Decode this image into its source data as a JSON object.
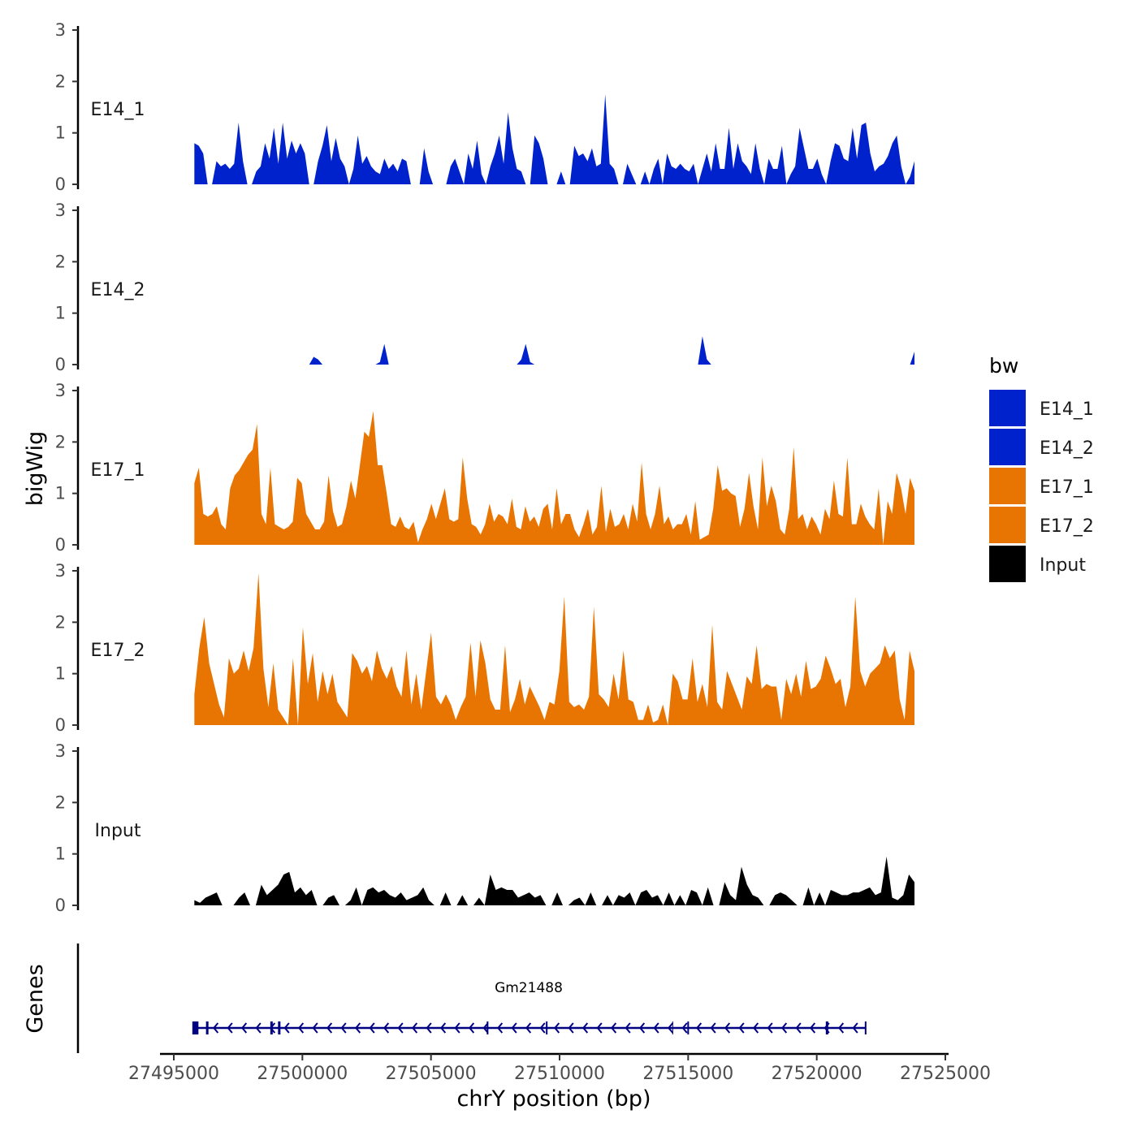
{
  "chart_data": {
    "type": "area",
    "ylabel": "bigWig",
    "xlabel": "chrY position (bp)",
    "y_ticks": [
      "0",
      "1",
      "2",
      "3"
    ],
    "ylim": [
      0,
      3
    ],
    "xlim": [
      27494000,
      27525500
    ],
    "x_ticks": [
      27495000,
      27500000,
      27505000,
      27510000,
      27515000,
      27520000,
      27525000
    ],
    "x_tick_labels": [
      "27495000",
      "27500000",
      "27505000",
      "27510000",
      "27515000",
      "27520000",
      "27525000"
    ],
    "legend": {
      "title": "bw",
      "position": "right",
      "entries": [
        {
          "label": "E14_1",
          "color": "#0022CC"
        },
        {
          "label": "E14_2",
          "color": "#0022CC"
        },
        {
          "label": "E17_1",
          "color": "#E87502"
        },
        {
          "label": "E17_2",
          "color": "#E87502"
        },
        {
          "label": "Input",
          "color": "#000000"
        }
      ]
    },
    "series": [
      {
        "name": "E14_1",
        "color": "#0022CC",
        "x_start": 27495800,
        "x_end": 27523800,
        "values": [
          0.8,
          0.75,
          0.6,
          0,
          0,
          0.45,
          0.35,
          0.4,
          0.3,
          0.4,
          1.2,
          0.45,
          0,
          0,
          0.25,
          0.35,
          0.8,
          0.5,
          1.1,
          0.4,
          1.2,
          0.5,
          0.85,
          0.6,
          0.8,
          0.6,
          0,
          0,
          0.45,
          0.75,
          1.15,
          0.45,
          0.9,
          0.5,
          0.35,
          0,
          0.3,
          0.95,
          0.4,
          0.55,
          0.35,
          0.25,
          0.2,
          0.5,
          0.3,
          0.4,
          0.25,
          0.5,
          0.45,
          0,
          0,
          0,
          0.7,
          0.25,
          0,
          0,
          0,
          0,
          0.35,
          0.5,
          0.25,
          0,
          0.6,
          0.3,
          0.85,
          0.2,
          0,
          0.35,
          0.6,
          0.95,
          0.4,
          1.4,
          0.7,
          0.3,
          0.25,
          0,
          0,
          0.95,
          0.8,
          0.5,
          0,
          0,
          0,
          0.25,
          0,
          0,
          0.75,
          0.55,
          0.6,
          0.45,
          0.7,
          0.35,
          0.4,
          1.75,
          0.4,
          0.3,
          0,
          0,
          0.4,
          0.2,
          0,
          0,
          0.25,
          0,
          0.3,
          0.5,
          0,
          0.6,
          0.35,
          0.3,
          0.4,
          0.3,
          0.25,
          0.4,
          0,
          0.3,
          0.6,
          0.25,
          0.8,
          0.3,
          0.3,
          1.1,
          0.3,
          0.8,
          0.45,
          0.35,
          0.2,
          0.8,
          0.3,
          0,
          0.5,
          0.3,
          0.3,
          0.75,
          0,
          0.2,
          0.35,
          1.1,
          0.7,
          0.3,
          0.3,
          0.5,
          0.2,
          0,
          0.45,
          0.8,
          0.75,
          0.5,
          0.45,
          1.1,
          0.5,
          1.15,
          1.2,
          0.6,
          0.25,
          0.35,
          0.4,
          0.55,
          0.8,
          0.95,
          0.35,
          0,
          0.15,
          0.45
        ]
      },
      {
        "name": "E14_2",
        "color": "#0022CC",
        "x_start": 27495800,
        "x_end": 27523800,
        "values": [
          0,
          0,
          0,
          0,
          0,
          0,
          0,
          0,
          0,
          0,
          0,
          0,
          0,
          0,
          0,
          0,
          0,
          0,
          0,
          0,
          0,
          0,
          0,
          0,
          0,
          0,
          0,
          0.15,
          0.1,
          0,
          0,
          0,
          0,
          0,
          0,
          0,
          0,
          0,
          0,
          0,
          0,
          0,
          0.05,
          0.4,
          0,
          0,
          0,
          0,
          0,
          0,
          0,
          0,
          0,
          0,
          0,
          0,
          0,
          0,
          0,
          0,
          0,
          0,
          0,
          0,
          0,
          0,
          0,
          0,
          0,
          0,
          0,
          0,
          0,
          0,
          0.1,
          0.4,
          0.05,
          0,
          0,
          0,
          0,
          0,
          0,
          0,
          0,
          0,
          0,
          0,
          0,
          0,
          0,
          0,
          0,
          0,
          0,
          0,
          0,
          0,
          0,
          0,
          0,
          0,
          0,
          0,
          0,
          0,
          0,
          0,
          0,
          0,
          0,
          0,
          0,
          0,
          0,
          0.55,
          0.1,
          0,
          0,
          0,
          0,
          0,
          0,
          0,
          0,
          0,
          0,
          0,
          0,
          0,
          0,
          0,
          0,
          0,
          0,
          0,
          0,
          0,
          0,
          0,
          0,
          0,
          0,
          0,
          0,
          0,
          0,
          0,
          0,
          0,
          0,
          0,
          0,
          0,
          0,
          0,
          0,
          0,
          0,
          0,
          0,
          0,
          0,
          0.25
        ]
      },
      {
        "name": "E17_1",
        "color": "#E87502",
        "x_start": 27495800,
        "x_end": 27523800,
        "values": [
          1.2,
          1.5,
          0.6,
          0.55,
          0.6,
          0.75,
          0.4,
          0.3,
          1.1,
          1.35,
          1.45,
          1.6,
          1.75,
          1.85,
          2.35,
          0.6,
          0.4,
          1.5,
          0.4,
          0.35,
          0.3,
          0.35,
          0.45,
          1.3,
          1.2,
          0.6,
          0.45,
          0.3,
          0.3,
          0.45,
          1.35,
          0.65,
          0.35,
          0.4,
          0.75,
          1.25,
          0.9,
          1.55,
          2.2,
          2.1,
          2.6,
          1.55,
          1.55,
          1,
          0.4,
          0.35,
          0.55,
          0.35,
          0.3,
          0.45,
          0.05,
          0.3,
          0.5,
          0.8,
          0.5,
          0.8,
          1.1,
          0.5,
          0.45,
          0.5,
          1.7,
          0.9,
          0.4,
          0.35,
          0.2,
          0.4,
          0.8,
          0.45,
          0.6,
          0.55,
          0.4,
          0.9,
          0.35,
          0.3,
          0.75,
          0.45,
          0.55,
          0.35,
          0.7,
          0.8,
          0.3,
          1.1,
          0.4,
          0.6,
          0.6,
          0.3,
          0.15,
          0.4,
          0.7,
          0.2,
          0.35,
          1.15,
          0.25,
          0.7,
          0.35,
          0.4,
          0.6,
          0.3,
          0.8,
          0.45,
          1.6,
          0.6,
          0.3,
          0.6,
          1.15,
          0.4,
          0.55,
          0.3,
          0.4,
          0.4,
          0.6,
          0.2,
          0.85,
          0.1,
          0.15,
          0.2,
          0.7,
          1.55,
          1.05,
          1.1,
          1,
          0.95,
          0.35,
          0.7,
          1.4,
          0.75,
          0.3,
          1.7,
          0.75,
          1.15,
          0.85,
          0.3,
          0.2,
          0.7,
          1.9,
          0.5,
          0.6,
          0.3,
          0.55,
          0.4,
          0.2,
          0.7,
          0.5,
          1.25,
          0.6,
          0.55,
          1.7,
          0.4,
          0.4,
          0.8,
          0.55,
          0.4,
          0.3,
          1.1,
          0,
          0.85,
          0.6,
          1.4,
          1.1,
          0.6,
          1.3,
          1.05
        ]
      },
      {
        "name": "E17_2",
        "color": "#E87502",
        "x_start": 27495800,
        "x_end": 27523800,
        "values": [
          0.6,
          1.5,
          2.1,
          1.2,
          0.8,
          0.4,
          0.15,
          1.3,
          1,
          1.1,
          1.45,
          1.05,
          1.5,
          2.95,
          1.1,
          0.35,
          1.2,
          0.3,
          0.15,
          0,
          1.3,
          0,
          1.9,
          0.8,
          1.4,
          0.45,
          1.05,
          0.6,
          1,
          0.45,
          0.3,
          0.15,
          1.4,
          1.25,
          1,
          1.15,
          0.85,
          1.45,
          1.1,
          0.9,
          1.15,
          0.75,
          0.55,
          1.45,
          0.4,
          1,
          0.3,
          1.05,
          1.8,
          0.55,
          0.4,
          0.6,
          0.4,
          0.1,
          0.35,
          0.55,
          1.6,
          0.55,
          1.65,
          1.2,
          0.5,
          0.3,
          0.3,
          1.55,
          0.25,
          0.5,
          0.9,
          0.4,
          0.75,
          0.55,
          0.35,
          0.1,
          0.45,
          0.4,
          1.05,
          2.5,
          0.45,
          0.35,
          0.4,
          0.3,
          0.55,
          2.3,
          0.6,
          0.5,
          0.35,
          1,
          0.5,
          1.45,
          0.5,
          0.45,
          0.1,
          0.1,
          0.4,
          0.05,
          0.1,
          0.4,
          0,
          1,
          0.85,
          0.5,
          0.5,
          1.3,
          0.45,
          0.8,
          0.35,
          1.95,
          0.45,
          0.3,
          1.05,
          0.8,
          0.55,
          0.3,
          0.95,
          0.8,
          1.55,
          0.7,
          0.8,
          0.75,
          0.75,
          0.1,
          0.9,
          0.6,
          1,
          0.55,
          1.25,
          0.7,
          0.75,
          0.9,
          1.35,
          1.1,
          0.8,
          0.9,
          0.35,
          0.75,
          2.5,
          1.05,
          0.75,
          1,
          1.1,
          1.2,
          1.55,
          1.3,
          1.45,
          0.5,
          0.1,
          1.45,
          1.05
        ]
      },
      {
        "name": "Input",
        "color": "#000000",
        "x_start": 27495800,
        "x_end": 27523800,
        "values": [
          0.1,
          0.05,
          0.15,
          0.2,
          0.25,
          0,
          0,
          0,
          0.15,
          0.25,
          0,
          0,
          0.4,
          0.2,
          0.3,
          0.4,
          0.6,
          0.65,
          0.25,
          0.35,
          0.2,
          0.3,
          0,
          0,
          0.15,
          0.2,
          0,
          0,
          0.1,
          0.35,
          0,
          0.3,
          0.35,
          0.25,
          0.3,
          0.2,
          0.15,
          0.25,
          0.1,
          0.15,
          0.2,
          0.35,
          0.1,
          0,
          0,
          0.25,
          0,
          0,
          0.2,
          0,
          0,
          0.15,
          0,
          0.6,
          0.3,
          0.35,
          0.3,
          0.3,
          0.15,
          0.2,
          0.25,
          0.15,
          0.2,
          0,
          0,
          0.25,
          0,
          0,
          0.1,
          0.15,
          0,
          0.25,
          0,
          0,
          0.2,
          0,
          0.2,
          0.15,
          0.25,
          0,
          0.25,
          0.3,
          0.15,
          0.2,
          0,
          0.25,
          0,
          0.2,
          0,
          0.3,
          0.25,
          0,
          0.35,
          0,
          0,
          0.45,
          0.2,
          0.1,
          0.75,
          0.4,
          0.2,
          0.15,
          0,
          0,
          0.2,
          0.25,
          0.2,
          0.1,
          0,
          0,
          0.35,
          0,
          0.25,
          0,
          0.3,
          0.25,
          0.2,
          0.2,
          0.25,
          0.25,
          0.3,
          0.35,
          0.2,
          0.25,
          0.95,
          0.15,
          0.1,
          0.2,
          0.6,
          0.45
        ]
      }
    ],
    "gene_track": {
      "label": "Genes",
      "gene_name": "Gm21488",
      "start": 27495800,
      "end": 27521900,
      "strand": "-",
      "exons": [
        27495800,
        27496300,
        27498800,
        27499100,
        27507200,
        27509500,
        27514400,
        27515000,
        27520400,
        27521900
      ],
      "color": "#000080"
    }
  }
}
